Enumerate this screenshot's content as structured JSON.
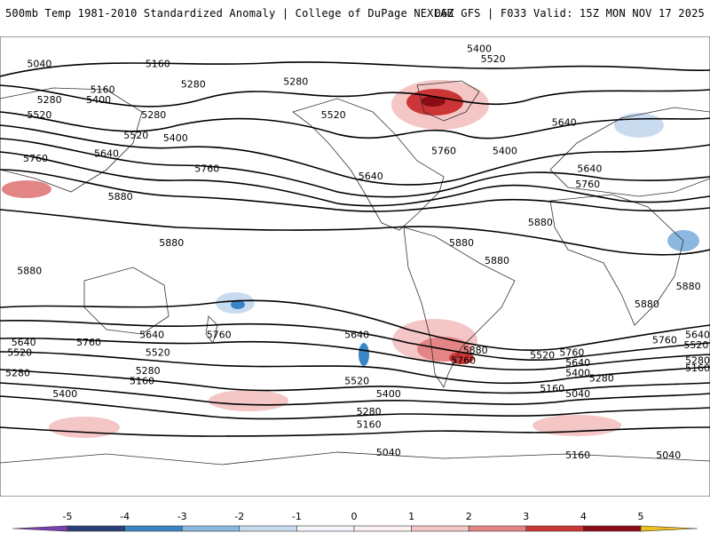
{
  "header": {
    "title_left": "500mb Temp 1981-2010 Standardized Anomaly | College of DuPage NEXLAB",
    "title_right": "06Z GFS | F033 Valid: 15Z MON NOV 17 2025"
  },
  "map": {
    "product": "500mb temperature standardized anomaly with 500mb height contours",
    "model": "GFS",
    "height_units": "dam (m)",
    "contour_levels": [
      5040,
      5160,
      5280,
      5400,
      5520,
      5640,
      5760,
      5880
    ],
    "contour_labels": [
      {
        "text": "5040",
        "lon": -160,
        "lat": 78
      },
      {
        "text": "5160",
        "lon": -100,
        "lat": 78
      },
      {
        "text": "5160",
        "lon": -128,
        "lat": 68
      },
      {
        "text": "5280",
        "lon": -155,
        "lat": 64
      },
      {
        "text": "5400",
        "lon": -130,
        "lat": 64
      },
      {
        "text": "5520",
        "lon": -160,
        "lat": 58
      },
      {
        "text": "5760",
        "lon": -162,
        "lat": 41
      },
      {
        "text": "5880",
        "lon": -119,
        "lat": 26
      },
      {
        "text": "5880",
        "lon": -93,
        "lat": 8
      },
      {
        "text": "5280",
        "lon": -82,
        "lat": 70
      },
      {
        "text": "5280",
        "lon": -102,
        "lat": 58
      },
      {
        "text": "5520",
        "lon": -111,
        "lat": 50
      },
      {
        "text": "5400",
        "lon": -91,
        "lat": 49
      },
      {
        "text": "5640",
        "lon": -126,
        "lat": 43
      },
      {
        "text": "5760",
        "lon": -75,
        "lat": 37
      },
      {
        "text": "5280",
        "lon": -30,
        "lat": 71
      },
      {
        "text": "5520",
        "lon": -11,
        "lat": 58
      },
      {
        "text": "5640",
        "lon": 8,
        "lat": 34
      },
      {
        "text": "5760",
        "lon": 45,
        "lat": 44
      },
      {
        "text": "5400",
        "lon": 63,
        "lat": 84
      },
      {
        "text": "5520",
        "lon": 70,
        "lat": 80
      },
      {
        "text": "5400",
        "lon": 76,
        "lat": 44
      },
      {
        "text": "5640",
        "lon": 106,
        "lat": 55
      },
      {
        "text": "5640",
        "lon": 119,
        "lat": 37
      },
      {
        "text": "5760",
        "lon": 118,
        "lat": 31
      },
      {
        "text": "5880",
        "lon": 94,
        "lat": 16
      },
      {
        "text": "5880",
        "lon": 54,
        "lat": 8
      },
      {
        "text": "5880",
        "lon": 72,
        "lat": 1
      },
      {
        "text": "5880",
        "lon": 169,
        "lat": -9
      },
      {
        "text": "5880",
        "lon": 148,
        "lat": -16
      },
      {
        "text": "5880",
        "lon": -165,
        "lat": -3
      },
      {
        "text": "5760",
        "lon": -135,
        "lat": -31
      },
      {
        "text": "5640",
        "lon": -103,
        "lat": -28
      },
      {
        "text": "5760",
        "lon": -69,
        "lat": -28
      },
      {
        "text": "5520",
        "lon": -100,
        "lat": -35
      },
      {
        "text": "5280",
        "lon": -105,
        "lat": -42
      },
      {
        "text": "5160",
        "lon": -108,
        "lat": -46
      },
      {
        "text": "5640",
        "lon": 1,
        "lat": -28
      },
      {
        "text": "5520",
        "lon": 1,
        "lat": -46
      },
      {
        "text": "5400",
        "lon": 17,
        "lat": -51
      },
      {
        "text": "5280",
        "lon": 7,
        "lat": -58
      },
      {
        "text": "5160",
        "lon": 7,
        "lat": -63
      },
      {
        "text": "5880",
        "lon": 61,
        "lat": -34
      },
      {
        "text": "5760",
        "lon": 55,
        "lat": -38
      },
      {
        "text": "5040",
        "lon": 17,
        "lat": -74
      },
      {
        "text": "5640",
        "lon": 179,
        "lat": -28
      },
      {
        "text": "5520",
        "lon": 173,
        "lat": -32
      },
      {
        "text": "5760",
        "lon": 157,
        "lat": -30
      },
      {
        "text": "5280",
        "lon": 176,
        "lat": -38
      },
      {
        "text": "5160",
        "lon": 176,
        "lat": -41
      },
      {
        "text": "5640",
        "lon": -168,
        "lat": -31
      },
      {
        "text": "5520",
        "lon": -170,
        "lat": -35
      },
      {
        "text": "5280",
        "lon": -171,
        "lat": -43
      },
      {
        "text": "5400",
        "lon": -147,
        "lat": -51
      },
      {
        "text": "5040",
        "lon": 159,
        "lat": -75
      },
      {
        "text": "5520",
        "lon": 95,
        "lat": -36
      },
      {
        "text": "5760",
        "lon": 110,
        "lat": -35
      },
      {
        "text": "5640",
        "lon": 113,
        "lat": -39
      },
      {
        "text": "5400",
        "lon": 113,
        "lat": -43
      },
      {
        "text": "5280",
        "lon": 125,
        "lat": -45
      },
      {
        "text": "5160",
        "lon": 100,
        "lat": -49
      },
      {
        "text": "5040",
        "lon": 113,
        "lat": -51
      },
      {
        "text": "5160",
        "lon": 113,
        "lat": -75
      }
    ],
    "anomaly_features": [
      {
        "name": "greenland-warm",
        "lon": 70,
        "lat": 76,
        "value": 5
      },
      {
        "name": "argentina-warm",
        "lon": 120,
        "lat": -41,
        "value": 4
      },
      {
        "name": "west-pacific-warm",
        "lon": -160,
        "lat": 41,
        "value": 3
      },
      {
        "name": "mid-atlantic-cold",
        "lon": 0,
        "lat": -50,
        "value": -4
      },
      {
        "name": "north-europe-cold",
        "lon": 148,
        "lat": 70,
        "value": -3
      },
      {
        "name": "south-pacific-cold",
        "lon": -120,
        "lat": -6,
        "value": -3
      },
      {
        "name": "east-africa-cold",
        "lon": 165,
        "lat": 14,
        "value": -3
      },
      {
        "name": "south-indian-warm",
        "lon": -120,
        "lat": -68,
        "value": 2
      }
    ]
  },
  "colorbar": {
    "ticks": [
      "-5",
      "-4",
      "-3",
      "-2",
      "-1",
      "0",
      "1",
      "2",
      "3",
      "4",
      "5"
    ],
    "bins": [
      {
        "from": -5,
        "to": -4,
        "color": "#2b3f78"
      },
      {
        "from": -4,
        "to": -3,
        "color": "#3a85c6"
      },
      {
        "from": -3,
        "to": -2,
        "color": "#8ab8e0"
      },
      {
        "from": -2,
        "to": -1,
        "color": "#c9dcef"
      },
      {
        "from": -1,
        "to": 0,
        "color": "#f2f6fb"
      },
      {
        "from": 0,
        "to": 1,
        "color": "#fbf1f1"
      },
      {
        "from": 1,
        "to": 2,
        "color": "#f4c6c6"
      },
      {
        "from": 2,
        "to": 3,
        "color": "#e48585"
      },
      {
        "from": 3,
        "to": 4,
        "color": "#cc3535"
      },
      {
        "from": 4,
        "to": 5,
        "color": "#8a0d16"
      }
    ],
    "low_extend_color": "#7a3fb0",
    "high_extend_color": "#f0c020"
  }
}
